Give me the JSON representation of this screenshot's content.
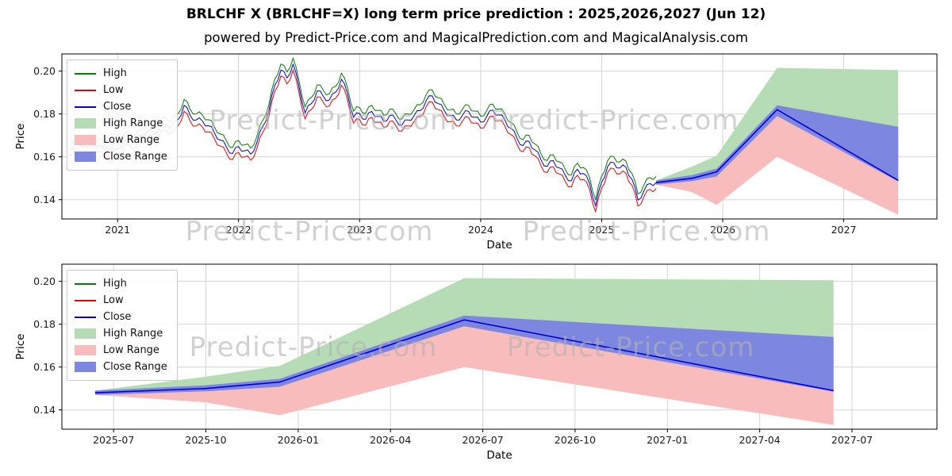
{
  "title": "BRLCHF X (BRLCHF=X) long term price prediction : 2025,2026,2027 (Jun 12)",
  "subtitle": "powered by Predict-Price.com and MagicalPrediction.com and MagicalAnalysis.com",
  "watermark": "Predict-Price.com",
  "colors": {
    "high_line": "#007f00",
    "low_line": "#ee0000",
    "close_line": "#0000d8",
    "high_range": "#b5dcb5",
    "low_range": "#f9bcbc",
    "close_range": "#7e87e0",
    "grid": "#d4d4d4",
    "axis": "#000000",
    "watermark": "#b3b3b3"
  },
  "legend": [
    {
      "label": "High",
      "swatch": "line",
      "color_key": "high_line"
    },
    {
      "label": "Low",
      "swatch": "line",
      "color_key": "low_line"
    },
    {
      "label": "Close",
      "swatch": "line",
      "color_key": "close_line"
    },
    {
      "label": "High Range",
      "swatch": "patch",
      "color_key": "high_range"
    },
    {
      "label": "Low Range",
      "swatch": "patch",
      "color_key": "low_range"
    },
    {
      "label": "Close Range",
      "swatch": "patch",
      "color_key": "close_range"
    }
  ],
  "chart_data": [
    {
      "type": "line",
      "name": "top-chart-history-and-forecast",
      "xlabel": "Date",
      "ylabel": "Price",
      "xlim": [
        2020.54,
        2027.77
      ],
      "ylim": [
        0.131,
        0.208
      ],
      "grid": true,
      "legend_position": "upper left",
      "xticks": [
        {
          "v": 2021,
          "label": "2021"
        },
        {
          "v": 2022,
          "label": "2022"
        },
        {
          "v": 2023,
          "label": "2023"
        },
        {
          "v": 2024,
          "label": "2024"
        },
        {
          "v": 2025,
          "label": "2025"
        },
        {
          "v": 2026,
          "label": "2026"
        },
        {
          "v": 2027,
          "label": "2027"
        }
      ],
      "yticks": [
        {
          "v": 0.14,
          "label": "0.14"
        },
        {
          "v": 0.16,
          "label": "0.16"
        },
        {
          "v": 0.18,
          "label": "0.18"
        },
        {
          "v": 0.2,
          "label": "0.20"
        }
      ],
      "series": {
        "historical": {
          "t_start": 2020.6,
          "t_step": 0.05,
          "band_offset": 0.0028,
          "jitter": 0.0012,
          "close": [
            0.1635,
            0.1662,
            0.1648,
            0.1672,
            0.1658,
            0.1655,
            0.1625,
            0.1605,
            0.1638,
            0.1668,
            0.1682,
            0.1672,
            0.1701,
            0.1722,
            0.1709,
            0.1735,
            0.1752,
            0.1741,
            0.1773,
            0.184,
            0.1794,
            0.1772,
            0.1768,
            0.1745,
            0.1713,
            0.1678,
            0.1645,
            0.1615,
            0.1648,
            0.1628,
            0.1612,
            0.1665,
            0.1742,
            0.1815,
            0.1935,
            0.2005,
            0.1968,
            0.2032,
            0.1925,
            0.1805,
            0.1848,
            0.1908,
            0.1882,
            0.1865,
            0.19,
            0.1962,
            0.1895,
            0.1785,
            0.1802,
            0.1775,
            0.1812,
            0.1788,
            0.1766,
            0.1794,
            0.1772,
            0.1748,
            0.1772,
            0.1792,
            0.1815,
            0.1862,
            0.1884,
            0.1848,
            0.1815,
            0.1792,
            0.1772,
            0.1795,
            0.1812,
            0.1785,
            0.1762,
            0.1788,
            0.1818,
            0.1795,
            0.1772,
            0.1732,
            0.1688,
            0.1652,
            0.1672,
            0.1632,
            0.1585,
            0.1555,
            0.1582,
            0.1548,
            0.1512,
            0.1488,
            0.1542,
            0.1522,
            0.1475,
            0.1372,
            0.1482,
            0.1555,
            0.1572,
            0.1548,
            0.1552,
            0.1495,
            0.1398,
            0.1442,
            0.1475,
            0.148
          ]
        },
        "forecast": {
          "t": [
            2025.45,
            2025.75,
            2025.95,
            2026.45,
            2027.45
          ],
          "close": [
            0.148,
            0.15,
            0.153,
            0.182,
            0.149
          ],
          "close_upper": [
            0.149,
            0.1515,
            0.1545,
            0.184,
            0.174
          ],
          "close_lower": [
            0.147,
            0.1487,
            0.1508,
            0.179,
            0.1485
          ],
          "high_upper": [
            0.149,
            0.1555,
            0.1605,
            0.2015,
            0.2005
          ],
          "low_lower": [
            0.147,
            0.1435,
            0.1375,
            0.16,
            0.133
          ]
        }
      }
    },
    {
      "type": "line",
      "name": "bottom-chart-forecast-detail",
      "xlabel": "Date",
      "ylabel": "Price",
      "xlim": [
        2025.36,
        2027.73
      ],
      "ylim": [
        0.131,
        0.208
      ],
      "grid": true,
      "legend_position": "upper left",
      "xticks": [
        {
          "v": 2025.5,
          "label": "2025-07"
        },
        {
          "v": 2025.75,
          "label": "2025-10"
        },
        {
          "v": 2026.0,
          "label": "2026-01"
        },
        {
          "v": 2026.25,
          "label": "2026-04"
        },
        {
          "v": 2026.5,
          "label": "2026-07"
        },
        {
          "v": 2026.75,
          "label": "2026-10"
        },
        {
          "v": 2027.0,
          "label": "2027-01"
        },
        {
          "v": 2027.25,
          "label": "2027-04"
        },
        {
          "v": 2027.5,
          "label": "2027-07"
        }
      ],
      "yticks": [
        {
          "v": 0.14,
          "label": "0.14"
        },
        {
          "v": 0.16,
          "label": "0.16"
        },
        {
          "v": 0.18,
          "label": "0.18"
        },
        {
          "v": 0.2,
          "label": "0.20"
        }
      ],
      "series": {
        "forecast": {
          "t": [
            2025.45,
            2025.75,
            2025.95,
            2026.45,
            2027.45
          ],
          "close": [
            0.148,
            0.15,
            0.153,
            0.182,
            0.149
          ],
          "close_upper": [
            0.149,
            0.1515,
            0.1545,
            0.184,
            0.174
          ],
          "close_lower": [
            0.147,
            0.1487,
            0.1508,
            0.179,
            0.1485
          ],
          "high_upper": [
            0.149,
            0.1555,
            0.1605,
            0.2015,
            0.2005
          ],
          "low_lower": [
            0.147,
            0.1435,
            0.1375,
            0.16,
            0.133
          ]
        }
      }
    }
  ]
}
